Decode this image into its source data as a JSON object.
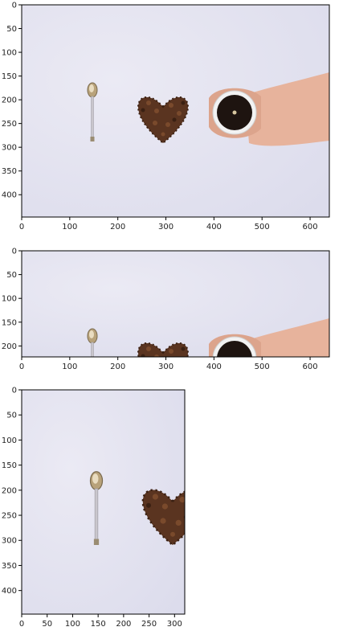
{
  "figure": {
    "panels": [
      {
        "id": "full",
        "x_ticks": [
          "0",
          "100",
          "200",
          "300",
          "400",
          "500",
          "600"
        ],
        "y_ticks": [
          "0",
          "50",
          "100",
          "150",
          "200",
          "250",
          "300",
          "350",
          "400"
        ],
        "xlim": [
          0,
          640
        ],
        "ylim": [
          0,
          447
        ]
      },
      {
        "id": "top-crop",
        "x_ticks": [
          "0",
          "100",
          "200",
          "300",
          "400",
          "500",
          "600"
        ],
        "y_ticks": [
          "0",
          "50",
          "100",
          "150",
          "200"
        ],
        "xlim": [
          0,
          640
        ],
        "ylim": [
          0,
          223
        ]
      },
      {
        "id": "left-crop",
        "x_ticks": [
          "0",
          "50",
          "100",
          "150",
          "200",
          "250",
          "300"
        ],
        "y_ticks": [
          "0",
          "50",
          "100",
          "150",
          "200",
          "250",
          "300",
          "350",
          "400"
        ],
        "xlim": [
          0,
          320
        ],
        "ylim": [
          0,
          447
        ]
      }
    ],
    "photo": {
      "subjects": [
        "spoon",
        "coffee-bean-heart",
        "coffee-cup",
        "hands"
      ],
      "background_color": "#e6e5f1",
      "bean_color": "#5a3420",
      "coffee_color": "#1e1410"
    }
  }
}
